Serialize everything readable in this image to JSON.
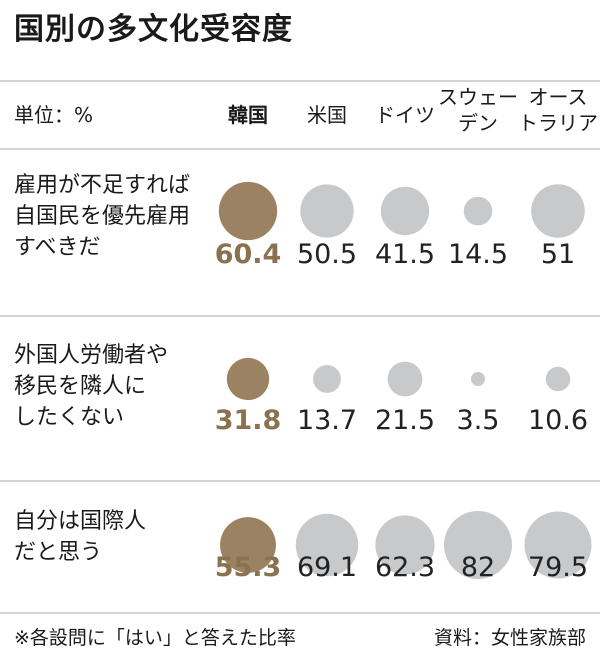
{
  "title": "国別の多文化受容度",
  "unit_label": "単位：%",
  "footnote": "※各設問に「はい」と答えた比率",
  "source": "資料：女性家族部",
  "colors": {
    "highlight_bubble": "#9a8263",
    "highlight_text": "#8a7250",
    "other_bubble": "#c8c9cb",
    "divider": "#d4d4d4"
  },
  "chart_data": {
    "type": "bubble-table",
    "title": "国別の多文化受容度",
    "unit": "%",
    "highlight_country_index": 0,
    "countries": [
      "韓国",
      "米国",
      "ドイツ",
      "スウェーデン",
      "オーストラリア"
    ],
    "country_labels": [
      "韓国",
      "米国",
      "ドイツ",
      "スウェー\nデン",
      "オース\nトラリア"
    ],
    "rows": [
      {
        "question": "雇用が不足すれば\n自国民を優先雇用\nすべきだ",
        "values": [
          60.4,
          50.5,
          41.5,
          14.5,
          51
        ]
      },
      {
        "question": "外国人労働者や\n移民を隣人に\nしたくない",
        "values": [
          31.8,
          13.7,
          21.5,
          3.5,
          10.6
        ]
      },
      {
        "question": "自分は国際人\nだと思う",
        "values": [
          55.3,
          69.1,
          62.3,
          82,
          79.5
        ]
      }
    ]
  }
}
